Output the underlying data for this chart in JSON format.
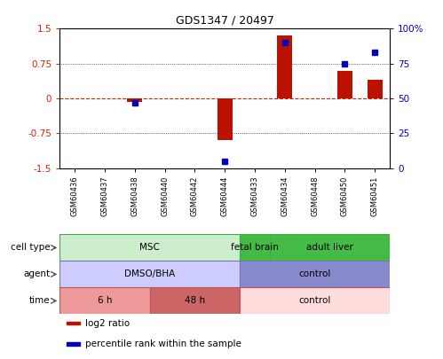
{
  "title": "GDS1347 / 20497",
  "samples": [
    "GSM60436",
    "GSM60437",
    "GSM60438",
    "GSM60440",
    "GSM60442",
    "GSM60444",
    "GSM60433",
    "GSM60434",
    "GSM60448",
    "GSM60450",
    "GSM60451"
  ],
  "log2_ratio": [
    0.0,
    0.0,
    -0.07,
    0.0,
    0.0,
    -0.9,
    0.0,
    1.35,
    0.0,
    0.6,
    0.4
  ],
  "percentile_rank": [
    null,
    null,
    47,
    null,
    null,
    5,
    null,
    90,
    null,
    75,
    83
  ],
  "ylim_left": [
    -1.5,
    1.5
  ],
  "ylim_right": [
    0,
    100
  ],
  "yticks_left": [
    -1.5,
    -0.75,
    0.0,
    0.75,
    1.5
  ],
  "ytick_labels_left": [
    "-1.5",
    "-0.75",
    "0",
    "0.75",
    "1.5"
  ],
  "yticks_right": [
    0,
    25,
    50,
    75,
    100
  ],
  "ytick_labels_right": [
    "0",
    "25",
    "50",
    "75",
    "100%"
  ],
  "bar_color": "#bb1100",
  "dot_color": "#0000bb",
  "zero_line_color": "#cc2200",
  "cell_type_groups": [
    {
      "label": "MSC",
      "start": 0,
      "end": 5,
      "color": "#cceecc",
      "border": "#44aa44"
    },
    {
      "label": "fetal brain",
      "start": 6,
      "end": 6,
      "color": "#44bb44",
      "border": "#44aa44"
    },
    {
      "label": "adult liver",
      "start": 7,
      "end": 10,
      "color": "#44bb44",
      "border": "#44aa44"
    }
  ],
  "agent_groups": [
    {
      "label": "DMSO/BHA",
      "start": 0,
      "end": 5,
      "color": "#ccccff",
      "border": "#7777bb"
    },
    {
      "label": "control",
      "start": 6,
      "end": 10,
      "color": "#8888cc",
      "border": "#7777bb"
    }
  ],
  "time_groups": [
    {
      "label": "6 h",
      "start": 0,
      "end": 2,
      "color": "#ee9999",
      "border": "#bb5555"
    },
    {
      "label": "48 h",
      "start": 3,
      "end": 5,
      "color": "#cc6666",
      "border": "#bb5555"
    },
    {
      "label": "control",
      "start": 6,
      "end": 10,
      "color": "#ffdddd",
      "border": "#bb5555"
    }
  ],
  "row_labels": [
    "cell type",
    "agent",
    "time"
  ],
  "legend_items": [
    {
      "label": "log2 ratio",
      "color": "#bb1100"
    },
    {
      "label": "percentile rank within the sample",
      "color": "#0000bb"
    }
  ]
}
